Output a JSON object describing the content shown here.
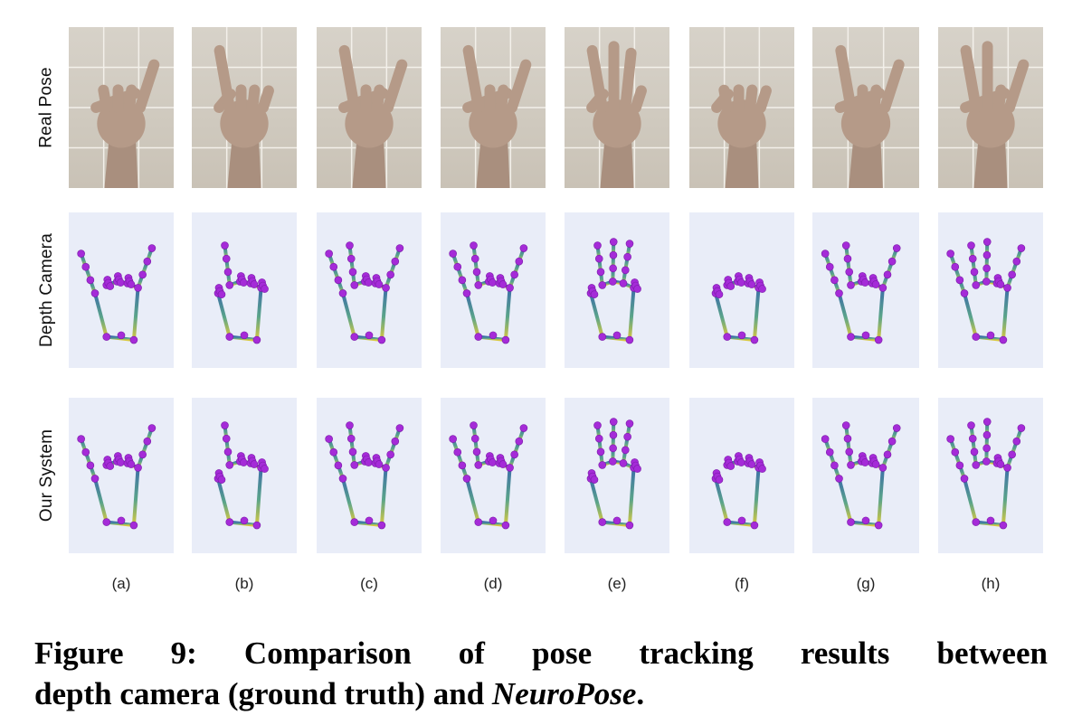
{
  "figure": {
    "row_labels": [
      "Real Pose",
      "Depth Camera",
      "Our System"
    ],
    "column_labels": [
      "(a)",
      "(b)",
      "(c)",
      "(d)",
      "(e)",
      "(f)",
      "(g)",
      "(h)"
    ],
    "gestures": [
      {
        "id": "a",
        "thumb": 1,
        "index": 0,
        "middle": 0,
        "ring": 0,
        "pinky": 1
      },
      {
        "id": "b",
        "thumb": 0,
        "index": 1,
        "middle": 0,
        "ring": 0,
        "pinky": 0
      },
      {
        "id": "c",
        "thumb": 1,
        "index": 1,
        "middle": 0,
        "ring": 0,
        "pinky": 1
      },
      {
        "id": "d",
        "thumb": 1,
        "index": 1,
        "middle": 0,
        "ring": 0,
        "pinky": 1
      },
      {
        "id": "e",
        "thumb": 0,
        "index": 1,
        "middle": 1,
        "ring": 1,
        "pinky": 0
      },
      {
        "id": "f",
        "thumb": 0,
        "index": 0,
        "middle": 0,
        "ring": 0,
        "pinky": 0
      },
      {
        "id": "g",
        "thumb": 1,
        "index": 1,
        "middle": 0,
        "ring": 0,
        "pinky": 1
      },
      {
        "id": "h",
        "thumb": 1,
        "index": 1,
        "middle": 1,
        "ring": 0,
        "pinky": 1
      }
    ],
    "colors": {
      "photo_background": "#d2ccc2",
      "skin": "#b59a88",
      "skeleton_background": "#e9edf8",
      "joint": "#a52bd8",
      "bone_top": "#3d6fa8",
      "bone_bottom": "#d9c93f"
    }
  },
  "caption": {
    "words_line1": [
      "Figure",
      "9:",
      "Comparison",
      "of",
      "pose",
      "tracking",
      "results",
      "between"
    ],
    "line2_text": "depth camera (ground truth) and ",
    "line2_italic": "NeuroPose",
    "line2_end": "."
  }
}
